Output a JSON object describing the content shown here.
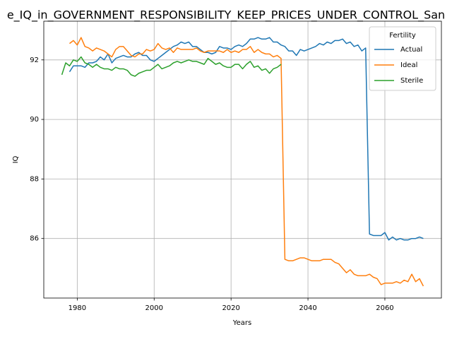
{
  "chart_data": {
    "type": "line",
    "title": "e_IQ_in_GOVERNMENT_RESPONSIBILITY_KEEP_PRICES_UNDER_CONTROL_San",
    "x_label": "Years",
    "y_label": "IQ",
    "x": [
      1976,
      1977,
      1978,
      1979,
      1980,
      1981,
      1982,
      1983,
      1984,
      1985,
      1986,
      1987,
      1988,
      1989,
      1990,
      1991,
      1992,
      1993,
      1994,
      1995,
      1996,
      1997,
      1998,
      1999,
      2000,
      2001,
      2002,
      2003,
      2004,
      2005,
      2006,
      2007,
      2008,
      2009,
      2010,
      2011,
      2012,
      2013,
      2014,
      2015,
      2016,
      2017,
      2018,
      2019,
      2020,
      2021,
      2022,
      2023,
      2024,
      2025,
      2026,
      2027,
      2028,
      2029,
      2030,
      2031,
      2032,
      2033,
      2034,
      2035,
      2036,
      2037,
      2038,
      2039,
      2040,
      2041,
      2042,
      2043,
      2044,
      2045,
      2046,
      2047,
      2048,
      2049,
      2050,
      2051,
      2052,
      2053,
      2054,
      2055,
      2056,
      2057,
      2058,
      2059,
      2060,
      2061,
      2062,
      2063,
      2064,
      2065,
      2066,
      2067,
      2068,
      2069,
      2070
    ],
    "series": [
      {
        "name": "Actual",
        "color": "#1f77b4",
        "values": [
          null,
          null,
          91.6,
          91.8,
          91.8,
          91.8,
          91.75,
          91.9,
          91.9,
          91.95,
          92.1,
          92.0,
          92.2,
          91.9,
          92.05,
          92.1,
          92.15,
          92.1,
          92.1,
          92.2,
          92.25,
          92.15,
          92.15,
          92.0,
          91.95,
          92.05,
          92.15,
          92.25,
          92.35,
          92.45,
          92.5,
          92.6,
          92.55,
          92.6,
          92.45,
          92.45,
          92.35,
          92.25,
          92.25,
          92.2,
          92.25,
          92.45,
          92.4,
          92.4,
          92.35,
          92.45,
          92.5,
          92.45,
          92.55,
          92.7,
          92.7,
          92.75,
          92.7,
          92.7,
          92.75,
          92.6,
          92.6,
          92.5,
          92.45,
          92.3,
          92.3,
          92.15,
          92.35,
          92.3,
          92.35,
          92.4,
          92.45,
          92.55,
          92.5,
          92.6,
          92.55,
          92.65,
          92.65,
          92.7,
          92.55,
          92.6,
          92.45,
          92.5,
          92.3,
          92.4,
          86.15,
          86.1,
          86.1,
          86.1,
          86.2,
          85.95,
          86.05,
          85.95,
          86.0,
          85.95,
          85.95,
          86.0,
          86.0,
          86.05,
          86.0
        ]
      },
      {
        "name": "Ideal",
        "color": "#ff7f0e",
        "values": [
          null,
          null,
          92.55,
          92.65,
          92.5,
          92.75,
          92.45,
          92.4,
          92.3,
          92.4,
          92.35,
          92.3,
          92.2,
          92.1,
          92.35,
          92.45,
          92.45,
          92.3,
          92.15,
          92.1,
          92.2,
          92.2,
          92.35,
          92.3,
          92.35,
          92.55,
          92.4,
          92.35,
          92.4,
          92.25,
          92.4,
          92.35,
          92.35,
          92.35,
          92.35,
          92.4,
          92.3,
          92.25,
          92.3,
          92.3,
          92.3,
          92.3,
          92.25,
          92.35,
          92.25,
          92.3,
          92.25,
          92.35,
          92.35,
          92.45,
          92.25,
          92.35,
          92.25,
          92.2,
          92.2,
          92.1,
          92.15,
          92.05,
          85.3,
          85.25,
          85.25,
          85.3,
          85.35,
          85.35,
          85.3,
          85.25,
          85.25,
          85.25,
          85.3,
          85.3,
          85.3,
          85.2,
          85.15,
          85.0,
          84.85,
          84.95,
          84.8,
          84.75,
          84.75,
          84.75,
          84.8,
          84.7,
          84.65,
          84.45,
          84.5,
          84.5,
          84.5,
          84.55,
          84.5,
          84.6,
          84.55,
          84.8,
          84.55,
          84.65,
          84.4
        ]
      },
      {
        "name": "Sterile",
        "color": "#2ca02c",
        "values": [
          91.5,
          91.9,
          91.8,
          92.0,
          91.95,
          92.1,
          91.9,
          91.85,
          91.75,
          91.85,
          91.75,
          91.7,
          91.7,
          91.65,
          91.75,
          91.7,
          91.7,
          91.65,
          91.5,
          91.45,
          91.55,
          91.6,
          91.65,
          91.65,
          91.75,
          91.85,
          91.7,
          91.75,
          91.8,
          91.9,
          91.95,
          91.9,
          91.95,
          92.0,
          91.95,
          91.95,
          91.9,
          91.85,
          92.05,
          91.95,
          91.85,
          91.9,
          91.8,
          91.75,
          91.75,
          91.85,
          91.85,
          91.7,
          91.85,
          91.95,
          91.75,
          91.8,
          91.65,
          91.7,
          91.55,
          91.7,
          91.75,
          91.85,
          null,
          null,
          null,
          null,
          null,
          null,
          null,
          null,
          null,
          null,
          null,
          null,
          null,
          null,
          null,
          null,
          null,
          null,
          null,
          null,
          null,
          null,
          null,
          null,
          null,
          null,
          null,
          null,
          null,
          null,
          null,
          null,
          null,
          null,
          null,
          null,
          null
        ]
      }
    ],
    "xlim": [
      1971.3,
      2074.7
    ],
    "ylim": [
      84.0,
      93.3
    ],
    "xticks": [
      1980,
      2000,
      2020,
      2040,
      2060
    ],
    "yticks": [
      86,
      88,
      90,
      92
    ],
    "grid": true,
    "legend_title": "Fertility",
    "legend_position": "upper right"
  }
}
